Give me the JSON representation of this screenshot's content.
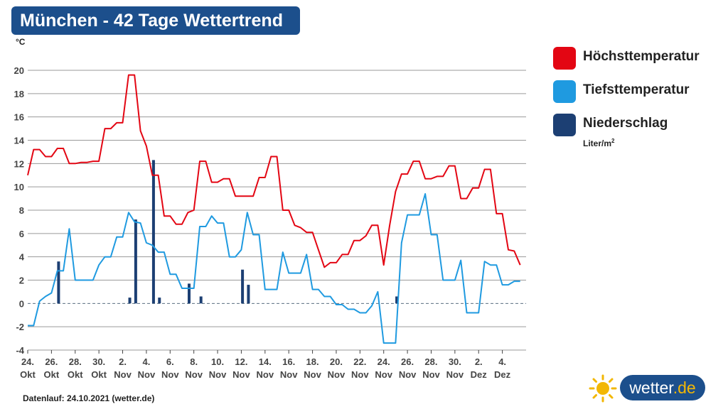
{
  "header": {
    "title": "München - 42 Tage Wettertrend"
  },
  "chart_data": {
    "type": "line",
    "unit_label": "°C",
    "ylim": [
      -4,
      20
    ],
    "y_ticks": [
      "20",
      "18",
      "16",
      "14",
      "12",
      "10",
      "8",
      "6",
      "4",
      "2",
      "0",
      "-2",
      "-4"
    ],
    "x_ticks": [
      {
        "day": "24.",
        "month": "Okt"
      },
      {
        "day": "26.",
        "month": "Okt"
      },
      {
        "day": "28.",
        "month": "Okt"
      },
      {
        "day": "30.",
        "month": "Okt"
      },
      {
        "day": "2.",
        "month": "Nov"
      },
      {
        "day": "4.",
        "month": "Nov"
      },
      {
        "day": "6.",
        "month": "Nov"
      },
      {
        "day": "8.",
        "month": "Nov"
      },
      {
        "day": "10.",
        "month": "Nov"
      },
      {
        "day": "12.",
        "month": "Nov"
      },
      {
        "day": "14.",
        "month": "Nov"
      },
      {
        "day": "16.",
        "month": "Nov"
      },
      {
        "day": "18.",
        "month": "Nov"
      },
      {
        "day": "20.",
        "month": "Nov"
      },
      {
        "day": "22.",
        "month": "Nov"
      },
      {
        "day": "24.",
        "month": "Nov"
      },
      {
        "day": "26.",
        "month": "Nov"
      },
      {
        "day": "28.",
        "month": "Nov"
      },
      {
        "day": "30.",
        "month": "Nov"
      },
      {
        "day": "2.",
        "month": "Dez"
      },
      {
        "day": "4.",
        "month": "Dez"
      }
    ],
    "grid": true,
    "series": [
      {
        "name": "Höchsttemperatur",
        "color": "#e30613",
        "type": "line",
        "points": [
          [
            0,
            11
          ],
          [
            0.5,
            13.2
          ],
          [
            1,
            13.2
          ],
          [
            1.5,
            12.6
          ],
          [
            2,
            12.6
          ],
          [
            2.5,
            13.3
          ],
          [
            3,
            13.3
          ],
          [
            3.5,
            12
          ],
          [
            4,
            12
          ],
          [
            4.5,
            12.1
          ],
          [
            5,
            12.1
          ],
          [
            5.5,
            12.2
          ],
          [
            6,
            12.2
          ],
          [
            6.5,
            15
          ],
          [
            7,
            15
          ],
          [
            7.5,
            15.5
          ],
          [
            8,
            15.5
          ],
          [
            8.5,
            19.6
          ],
          [
            9,
            19.6
          ],
          [
            9.5,
            14.8
          ],
          [
            10,
            13.5
          ],
          [
            10.5,
            11
          ],
          [
            11,
            11
          ],
          [
            11.5,
            7.5
          ],
          [
            12,
            7.5
          ],
          [
            12.5,
            6.8
          ],
          [
            13,
            6.8
          ],
          [
            13.5,
            7.8
          ],
          [
            14,
            8
          ],
          [
            14.5,
            12.2
          ],
          [
            15,
            12.2
          ],
          [
            15.5,
            10.4
          ],
          [
            16,
            10.4
          ],
          [
            16.5,
            10.7
          ],
          [
            17,
            10.7
          ],
          [
            17.5,
            9.2
          ],
          [
            18,
            9.2
          ],
          [
            18.5,
            9.2
          ],
          [
            19,
            9.2
          ],
          [
            19.5,
            10.8
          ],
          [
            20,
            10.8
          ],
          [
            20.5,
            12.6
          ],
          [
            21,
            12.6
          ],
          [
            21.5,
            8
          ],
          [
            22,
            8
          ],
          [
            22.5,
            6.7
          ],
          [
            23,
            6.5
          ],
          [
            23.5,
            6.1
          ],
          [
            24,
            6.1
          ],
          [
            24.5,
            4.6
          ],
          [
            25,
            3.1
          ],
          [
            25.5,
            3.5
          ],
          [
            26,
            3.5
          ],
          [
            26.5,
            4.2
          ],
          [
            27,
            4.2
          ],
          [
            27.5,
            5.4
          ],
          [
            28,
            5.4
          ],
          [
            28.5,
            5.8
          ],
          [
            29,
            6.7
          ],
          [
            29.5,
            6.7
          ],
          [
            30,
            3.3
          ],
          [
            30.5,
            6.7
          ],
          [
            31,
            9.6
          ],
          [
            31.5,
            11.1
          ],
          [
            32,
            11.1
          ],
          [
            32.5,
            12.2
          ],
          [
            33,
            12.2
          ],
          [
            33.5,
            10.7
          ],
          [
            34,
            10.7
          ],
          [
            34.5,
            10.9
          ],
          [
            35,
            10.9
          ],
          [
            35.5,
            11.8
          ],
          [
            36,
            11.8
          ],
          [
            36.5,
            9
          ],
          [
            37,
            9
          ],
          [
            37.5,
            9.9
          ],
          [
            38,
            9.9
          ],
          [
            38.5,
            11.5
          ],
          [
            39,
            11.5
          ],
          [
            39.5,
            7.7
          ],
          [
            40,
            7.7
          ],
          [
            40.5,
            4.6
          ],
          [
            41,
            4.5
          ],
          [
            41.5,
            3.3
          ]
        ]
      },
      {
        "name": "Tiefsttemperatur",
        "color": "#1f9ae0",
        "type": "line",
        "points": [
          [
            0,
            -1.9
          ],
          [
            0.5,
            -1.9
          ],
          [
            1,
            0.2
          ],
          [
            1.5,
            0.6
          ],
          [
            2,
            0.9
          ],
          [
            2.5,
            2.8
          ],
          [
            3,
            2.8
          ],
          [
            3.5,
            6.4
          ],
          [
            4,
            2
          ],
          [
            4.5,
            2
          ],
          [
            5,
            2
          ],
          [
            5.5,
            2
          ],
          [
            6,
            3.3
          ],
          [
            6.5,
            4
          ],
          [
            7,
            4
          ],
          [
            7.5,
            5.7
          ],
          [
            8,
            5.7
          ],
          [
            8.5,
            7.8
          ],
          [
            9,
            7
          ],
          [
            9.5,
            6.9
          ],
          [
            10,
            5.2
          ],
          [
            10.5,
            5
          ],
          [
            11,
            4.4
          ],
          [
            11.5,
            4.4
          ],
          [
            12,
            2.5
          ],
          [
            12.5,
            2.5
          ],
          [
            13,
            1.3
          ],
          [
            13.5,
            1.3
          ],
          [
            14,
            1.3
          ],
          [
            14.5,
            6.6
          ],
          [
            15,
            6.6
          ],
          [
            15.5,
            7.5
          ],
          [
            16,
            6.9
          ],
          [
            16.5,
            6.9
          ],
          [
            17,
            4
          ],
          [
            17.5,
            4
          ],
          [
            18,
            4.6
          ],
          [
            18.5,
            7.8
          ],
          [
            19,
            5.9
          ],
          [
            19.5,
            5.9
          ],
          [
            20,
            1.2
          ],
          [
            20.5,
            1.2
          ],
          [
            21,
            1.2
          ],
          [
            21.5,
            4.4
          ],
          [
            22,
            2.6
          ],
          [
            22.5,
            2.6
          ],
          [
            23,
            2.6
          ],
          [
            23.5,
            4.2
          ],
          [
            24,
            1.2
          ],
          [
            24.5,
            1.2
          ],
          [
            25,
            0.6
          ],
          [
            25.5,
            0.6
          ],
          [
            26,
            -0.1
          ],
          [
            26.5,
            -0.1
          ],
          [
            27,
            -0.5
          ],
          [
            27.5,
            -0.5
          ],
          [
            28,
            -0.8
          ],
          [
            28.5,
            -0.8
          ],
          [
            29,
            -0.2
          ],
          [
            29.5,
            1
          ],
          [
            30,
            -3.4
          ],
          [
            30.5,
            -3.4
          ],
          [
            31,
            -3.4
          ],
          [
            31.5,
            5.2
          ],
          [
            32,
            7.6
          ],
          [
            32.5,
            7.6
          ],
          [
            33,
            7.6
          ],
          [
            33.5,
            9.4
          ],
          [
            34,
            5.9
          ],
          [
            34.5,
            5.9
          ],
          [
            35,
            2
          ],
          [
            35.5,
            2
          ],
          [
            36,
            2
          ],
          [
            36.5,
            3.7
          ],
          [
            37,
            -0.8
          ],
          [
            37.5,
            -0.8
          ],
          [
            38,
            -0.8
          ],
          [
            38.5,
            3.6
          ],
          [
            39,
            3.3
          ],
          [
            39.5,
            3.3
          ],
          [
            40,
            1.6
          ],
          [
            40.5,
            1.6
          ],
          [
            41,
            1.9
          ],
          [
            41.5,
            1.9
          ]
        ]
      },
      {
        "name": "Niederschlag",
        "unit_label": "Liter/m²",
        "color": "#1c3f73",
        "type": "bar",
        "points": [
          [
            2.6,
            3.6
          ],
          [
            8.6,
            0.5
          ],
          [
            9.1,
            7.2
          ],
          [
            10.6,
            12.3
          ],
          [
            11.1,
            0.5
          ],
          [
            13.6,
            1.7
          ],
          [
            14.6,
            0.6
          ],
          [
            18.1,
            2.9
          ],
          [
            18.6,
            1.6
          ],
          [
            31.1,
            0.6
          ]
        ]
      }
    ]
  },
  "legend": {
    "items": [
      {
        "label": "Höchsttemperatur",
        "color": "#e30613"
      },
      {
        "label": "Tiefsttemperatur",
        "color": "#1f9ae0"
      },
      {
        "label": "Niederschlag",
        "color": "#1c3f73"
      }
    ],
    "sub_label_base": "Liter/m",
    "sub_label_sup": "2"
  },
  "footer": {
    "text": "Datenlauf: 24.10.2021 (wetter.de)"
  },
  "logo": {
    "name": "wetter",
    "tld": ".de",
    "sun_color": "#f2b705"
  }
}
